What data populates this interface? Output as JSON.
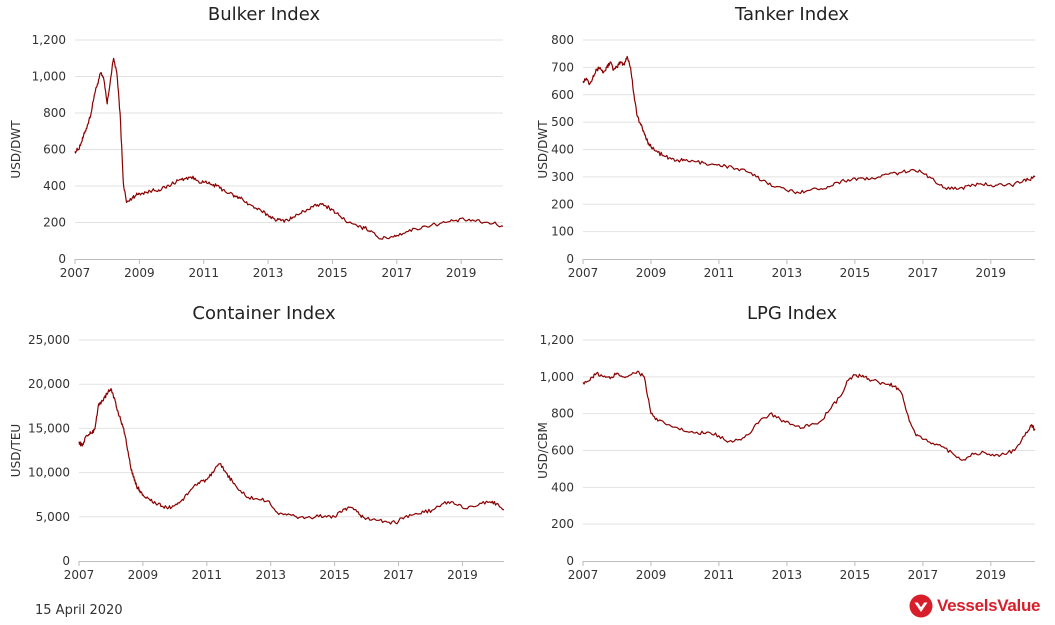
{
  "footer": {
    "date": "15 April 2020"
  },
  "brand": {
    "name": "VesselsValue",
    "color": "#d81e2a"
  },
  "colors": {
    "series": "#8b0000",
    "grid": "#e2e2e2"
  },
  "chart_data": [
    {
      "type": "line",
      "title": "Bulker Index",
      "xlabel": "",
      "ylabel": "USD/DWT",
      "xlim": [
        2007,
        2020.3
      ],
      "ylim": [
        0,
        1200
      ],
      "xticks": [
        2007,
        2009,
        2011,
        2013,
        2015,
        2017,
        2019
      ],
      "xtick_labels": [
        "2007",
        "2009",
        "2011",
        "2013",
        "2015",
        "2017",
        "2019"
      ],
      "yticks": [
        0,
        200,
        400,
        600,
        800,
        1000,
        1200
      ],
      "ytick_labels": [
        "0",
        "200",
        "400",
        "600",
        "800",
        "1,000",
        "1,200"
      ],
      "grid": true,
      "legend": "none",
      "series": [
        {
          "x": [
            2007.0,
            2007.1,
            2007.2,
            2007.3,
            2007.4,
            2007.5,
            2007.6,
            2007.7,
            2007.8,
            2007.9,
            2008.0,
            2008.1,
            2008.2,
            2008.3,
            2008.4,
            2008.5,
            2008.6,
            2008.7,
            2008.8,
            2008.9,
            2009.0,
            2009.2,
            2009.4,
            2009.6,
            2009.8,
            2010.0,
            2010.2,
            2010.4,
            2010.6,
            2010.8,
            2011.0,
            2011.2,
            2011.4,
            2011.6,
            2011.8,
            2012.0,
            2012.2,
            2012.4,
            2012.6,
            2012.8,
            2013.0,
            2013.2,
            2013.4,
            2013.6,
            2013.8,
            2014.0,
            2014.2,
            2014.4,
            2014.6,
            2014.8,
            2015.0,
            2015.2,
            2015.5,
            2015.8,
            2016.0,
            2016.2,
            2016.5,
            2016.8,
            2017.0,
            2017.3,
            2017.6,
            2017.9,
            2018.2,
            2018.5,
            2018.8,
            2019.1,
            2019.4,
            2019.7,
            2020.0,
            2020.3
          ],
          "values": [
            590,
            600,
            640,
            690,
            740,
            800,
            900,
            960,
            1020,
            980,
            850,
            980,
            1100,
            1020,
            800,
            420,
            310,
            320,
            340,
            350,
            360,
            365,
            375,
            380,
            390,
            410,
            430,
            440,
            450,
            430,
            420,
            410,
            400,
            380,
            360,
            340,
            330,
            300,
            280,
            260,
            240,
            220,
            210,
            215,
            230,
            250,
            270,
            285,
            300,
            290,
            270,
            240,
            200,
            175,
            170,
            155,
            110,
            120,
            130,
            150,
            165,
            180,
            190,
            200,
            210,
            215,
            210,
            200,
            195,
            180
          ]
        }
      ]
    },
    {
      "type": "line",
      "title": "Tanker Index",
      "xlabel": "",
      "ylabel": "USD/DWT",
      "xlim": [
        2007,
        2020.3
      ],
      "ylim": [
        0,
        800
      ],
      "xticks": [
        2007,
        2009,
        2011,
        2013,
        2015,
        2017,
        2019
      ],
      "xtick_labels": [
        "2007",
        "2009",
        "2011",
        "2013",
        "2015",
        "2017",
        "2019"
      ],
      "yticks": [
        0,
        100,
        200,
        300,
        400,
        500,
        600,
        700,
        800
      ],
      "ytick_labels": [
        "0",
        "100",
        "200",
        "300",
        "400",
        "500",
        "600",
        "700",
        "800"
      ],
      "grid": true,
      "legend": "none",
      "series": [
        {
          "x": [
            2007.0,
            2007.1,
            2007.2,
            2007.3,
            2007.4,
            2007.5,
            2007.6,
            2007.7,
            2007.8,
            2007.9,
            2008.0,
            2008.1,
            2008.2,
            2008.3,
            2008.4,
            2008.5,
            2008.6,
            2008.7,
            2008.8,
            2008.9,
            2009.0,
            2009.2,
            2009.4,
            2009.6,
            2009.8,
            2010.0,
            2010.3,
            2010.6,
            2010.9,
            2011.2,
            2011.5,
            2011.8,
            2012.1,
            2012.4,
            2012.7,
            2013.0,
            2013.3,
            2013.6,
            2013.9,
            2014.2,
            2014.5,
            2014.8,
            2015.1,
            2015.4,
            2015.7,
            2016.0,
            2016.3,
            2016.6,
            2016.9,
            2017.2,
            2017.5,
            2017.8,
            2018.1,
            2018.4,
            2018.7,
            2019.0,
            2019.3,
            2019.6,
            2019.9,
            2020.1,
            2020.3
          ],
          "values": [
            650,
            660,
            640,
            670,
            690,
            700,
            680,
            700,
            720,
            690,
            700,
            720,
            710,
            740,
            700,
            600,
            520,
            490,
            460,
            430,
            410,
            390,
            375,
            365,
            360,
            360,
            355,
            350,
            345,
            340,
            330,
            320,
            300,
            280,
            265,
            250,
            245,
            250,
            255,
            265,
            280,
            290,
            295,
            290,
            300,
            310,
            315,
            320,
            325,
            300,
            270,
            255,
            260,
            265,
            275,
            270,
            275,
            270,
            280,
            290,
            300
          ]
        }
      ]
    },
    {
      "type": "line",
      "title": "Container Index",
      "xlabel": "",
      "ylabel": "USD/TEU",
      "xlim": [
        2007,
        2020.3
      ],
      "ylim": [
        0,
        25000
      ],
      "xticks": [
        2007,
        2009,
        2011,
        2013,
        2015,
        2017,
        2019
      ],
      "xtick_labels": [
        "2007",
        "2009",
        "2011",
        "2013",
        "2015",
        "2017",
        "2019"
      ],
      "yticks": [
        0,
        5000,
        10000,
        15000,
        20000,
        25000
      ],
      "ytick_labels": [
        "0",
        "5,000",
        "10,000",
        "15,000",
        "20,000",
        "25,000"
      ],
      "grid": true,
      "legend": "none",
      "series": [
        {
          "x": [
            2007.0,
            2007.1,
            2007.2,
            2007.3,
            2007.4,
            2007.5,
            2007.6,
            2007.7,
            2007.8,
            2007.9,
            2008.0,
            2008.1,
            2008.2,
            2008.3,
            2008.4,
            2008.5,
            2008.6,
            2008.7,
            2008.8,
            2008.9,
            2009.0,
            2009.2,
            2009.4,
            2009.6,
            2009.8,
            2010.0,
            2010.2,
            2010.4,
            2010.6,
            2010.8,
            2011.0,
            2011.2,
            2011.4,
            2011.6,
            2011.8,
            2012.0,
            2012.3,
            2012.6,
            2012.9,
            2013.2,
            2013.5,
            2013.8,
            2014.1,
            2014.4,
            2014.7,
            2015.0,
            2015.2,
            2015.4,
            2015.6,
            2015.8,
            2016.0,
            2016.3,
            2016.6,
            2016.9,
            2017.2,
            2017.5,
            2017.8,
            2018.1,
            2018.4,
            2018.7,
            2019.0,
            2019.3,
            2019.6,
            2019.9,
            2020.1,
            2020.3
          ],
          "values": [
            13500,
            13000,
            14000,
            14300,
            14500,
            15000,
            17500,
            18000,
            18500,
            19000,
            19500,
            18500,
            17000,
            16000,
            15000,
            13000,
            11000,
            9500,
            8500,
            8000,
            7500,
            7000,
            6500,
            6200,
            6000,
            6300,
            6800,
            7500,
            8500,
            9000,
            9200,
            10000,
            11000,
            10000,
            9000,
            8000,
            7200,
            7000,
            6800,
            5500,
            5200,
            5000,
            4900,
            5000,
            5100,
            5000,
            5500,
            6000,
            5800,
            5200,
            4800,
            4600,
            4500,
            4300,
            5000,
            5300,
            5500,
            5800,
            6500,
            6700,
            6000,
            6200,
            6500,
            6600,
            6500,
            5800
          ]
        }
      ]
    },
    {
      "type": "line",
      "title": "LPG Index",
      "xlabel": "",
      "ylabel": "USD/CBM",
      "xlim": [
        2007,
        2020.3
      ],
      "ylim": [
        0,
        1200
      ],
      "xticks": [
        2007,
        2009,
        2011,
        2013,
        2015,
        2017,
        2019
      ],
      "xtick_labels": [
        "2007",
        "2009",
        "2011",
        "2013",
        "2015",
        "2017",
        "2019"
      ],
      "yticks": [
        0,
        200,
        400,
        600,
        800,
        1000,
        1200
      ],
      "ytick_labels": [
        "0",
        "200",
        "400",
        "600",
        "800",
        "1,000",
        "1,200"
      ],
      "grid": true,
      "legend": "none",
      "series": [
        {
          "x": [
            2007.0,
            2007.2,
            2007.4,
            2007.6,
            2007.8,
            2008.0,
            2008.2,
            2008.4,
            2008.6,
            2008.8,
            2009.0,
            2009.2,
            2009.5,
            2009.8,
            2010.1,
            2010.4,
            2010.7,
            2011.0,
            2011.3,
            2011.6,
            2011.9,
            2012.2,
            2012.5,
            2012.8,
            2013.1,
            2013.4,
            2013.7,
            2014.0,
            2014.3,
            2014.6,
            2014.8,
            2015.0,
            2015.2,
            2015.4,
            2015.7,
            2016.0,
            2016.2,
            2016.4,
            2016.6,
            2016.8,
            2017.0,
            2017.3,
            2017.6,
            2017.9,
            2018.2,
            2018.5,
            2018.8,
            2019.1,
            2019.4,
            2019.7,
            2020.0,
            2020.2,
            2020.3
          ],
          "values": [
            970,
            980,
            1020,
            1000,
            990,
            1020,
            1000,
            1010,
            1030,
            1000,
            800,
            760,
            740,
            720,
            700,
            690,
            700,
            680,
            650,
            660,
            690,
            760,
            800,
            770,
            740,
            720,
            740,
            760,
            830,
            900,
            980,
            1010,
            1000,
            990,
            970,
            960,
            950,
            900,
            760,
            680,
            660,
            640,
            620,
            580,
            550,
            580,
            590,
            570,
            580,
            600,
            680,
            740,
            710
          ]
        }
      ]
    }
  ]
}
